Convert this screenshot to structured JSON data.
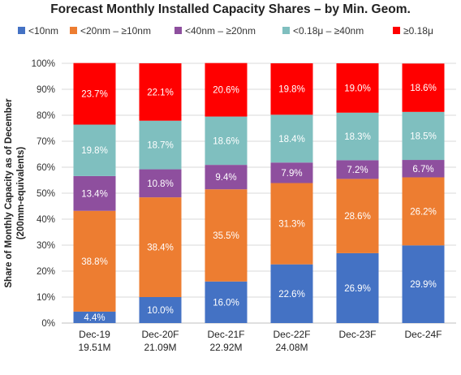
{
  "chart_data": {
    "type": "bar",
    "stacked": true,
    "title": "Forecast Monthly Installed Capacity Shares – by Min. Geom.",
    "ylabel": "Share of Monthly Capacity as of December (200mm-equivalents)",
    "xlabel": "",
    "ylim": [
      0,
      100
    ],
    "yticks": [
      0,
      10,
      20,
      30,
      40,
      50,
      60,
      70,
      80,
      90,
      100
    ],
    "ytick_suffix": "%",
    "grid": true,
    "legend_position": "top",
    "categories": [
      "Dec-19",
      "Dec-20F",
      "Dec-21F",
      "Dec-22F",
      "Dec-23F",
      "Dec-24F"
    ],
    "category_sublabels": [
      "19.51M",
      "21.09M",
      "22.92M",
      "24.08M",
      "",
      ""
    ],
    "series": [
      {
        "name": "<10nm",
        "color": "#4472c4",
        "values": [
          4.4,
          10.0,
          16.0,
          22.6,
          26.9,
          29.9
        ]
      },
      {
        "name": "<20nm – ≥10nm",
        "color": "#ed7d31",
        "values": [
          38.8,
          38.4,
          35.5,
          31.3,
          28.6,
          26.2
        ]
      },
      {
        "name": "<40nm – ≥20nm",
        "color": "#8e4f9e",
        "values": [
          13.4,
          10.8,
          9.4,
          7.9,
          7.2,
          6.7
        ]
      },
      {
        "name": "<0.18μ – ≥40nm",
        "color": "#7fbfbf",
        "values": [
          19.8,
          18.7,
          18.6,
          18.4,
          18.3,
          18.5
        ]
      },
      {
        "name": "≥0.18μ",
        "color": "#ff0000",
        "values": [
          23.7,
          22.1,
          20.6,
          19.8,
          19.0,
          18.6
        ]
      }
    ]
  }
}
